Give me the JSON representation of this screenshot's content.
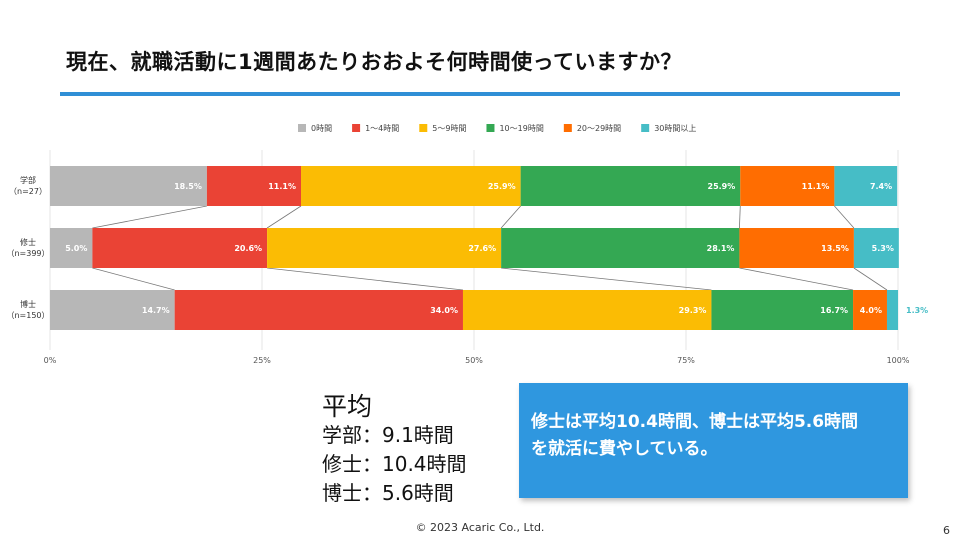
{
  "slide": {
    "title": "現在、就職活動に1週間あたりおおよそ何時間使っていますか？",
    "footer": "© 2023 Acaric Co., Ltd.",
    "page_number": "6",
    "accent_color": "#2f8fd6"
  },
  "average": {
    "heading": "平均",
    "rows": [
      {
        "label": "学部：9.1時間"
      },
      {
        "label": "修士：10.4時間"
      },
      {
        "label": "博士：5.6時間"
      }
    ]
  },
  "callout": {
    "line1": "修士は平均10.4時間、博士は平均5.6時間",
    "line2": "を就活に費やしている。",
    "color": "#2f97df"
  },
  "chart_data": {
    "type": "bar",
    "orientation": "horizontal",
    "stacked": "percent",
    "title": "",
    "xlim": [
      0,
      100
    ],
    "xticks": [
      "0%",
      "25%",
      "50%",
      "75%",
      "100%"
    ],
    "legend_position": "top",
    "categories": [
      {
        "name": "学部",
        "n": "（n=27）"
      },
      {
        "name": "修士",
        "n": "（n=399）"
      },
      {
        "name": "博士",
        "n": "（n=150）"
      }
    ],
    "series": [
      {
        "name": "0時間",
        "color": "#b7b7b7",
        "values": [
          18.5,
          5.0,
          14.7
        ],
        "labels": [
          "18.5%",
          "5.0%",
          "14.7%"
        ]
      },
      {
        "name": "1～4時間",
        "color": "#ea4335",
        "values": [
          11.1,
          20.6,
          34.0
        ],
        "labels": [
          "11.1%",
          "20.6%",
          "34.0%"
        ]
      },
      {
        "name": "5～9時間",
        "color": "#fbbc04",
        "values": [
          25.9,
          27.6,
          29.3
        ],
        "labels": [
          "25.9%",
          "27.6%",
          "29.3%"
        ]
      },
      {
        "name": "10～19時間",
        "color": "#34a853",
        "values": [
          25.9,
          28.1,
          16.7
        ],
        "labels": [
          "25.9%",
          "28.1%",
          "16.7%"
        ]
      },
      {
        "name": "20～29時間",
        "color": "#ff6d01",
        "values": [
          11.1,
          13.5,
          4.0
        ],
        "labels": [
          "11.1%",
          "13.5%",
          "4.0%"
        ]
      },
      {
        "name": "30時間以上",
        "color": "#46bdc6",
        "values": [
          7.4,
          5.3,
          1.3
        ],
        "labels": [
          "7.4%",
          "5.3%",
          "1.3%"
        ]
      }
    ]
  }
}
